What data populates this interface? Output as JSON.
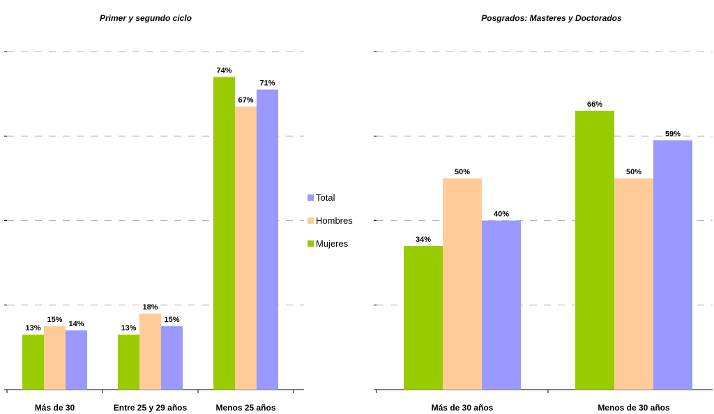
{
  "chart_data": [
    {
      "type": "bar",
      "title": "Primer y segundo ciclo",
      "categories": [
        "Más de 30",
        "Entre 25 y 29 años",
        "Menos 25 años"
      ],
      "series": [
        {
          "name": "Mujeres",
          "values": [
            13,
            13,
            74
          ],
          "labels": [
            "13%",
            "13%",
            "74%"
          ]
        },
        {
          "name": "Hombres",
          "values": [
            15,
            18,
            67
          ],
          "labels": [
            "15%",
            "18%",
            "67%"
          ]
        },
        {
          "name": "Total",
          "values": [
            14,
            15,
            71
          ],
          "labels": [
            "14%",
            "15%",
            "71%"
          ]
        }
      ],
      "ylim": [
        0,
        80
      ],
      "grid": true
    },
    {
      "type": "bar",
      "title": "Posgrados: Masteres y Doctorados",
      "categories": [
        "Más de 30 años",
        "Menos de 30 años"
      ],
      "series": [
        {
          "name": "Mujeres",
          "values": [
            34,
            66
          ],
          "labels": [
            "34%",
            "66%"
          ]
        },
        {
          "name": "Hombres",
          "values": [
            50,
            50
          ],
          "labels": [
            "50%",
            "50%"
          ]
        },
        {
          "name": "Total",
          "values": [
            40,
            59
          ],
          "labels": [
            "40%",
            "59%"
          ]
        }
      ],
      "ylim": [
        0,
        80
      ],
      "grid": true
    }
  ],
  "legend": {
    "placement": "center",
    "items": [
      {
        "name": "Total",
        "color": "#9999ff"
      },
      {
        "name": "Hombres",
        "color": "#ffcc99"
      },
      {
        "name": "Mujeres",
        "color": "#99cc00"
      }
    ]
  },
  "colors": {
    "Mujeres": "#99cc00",
    "Hombres": "#ffcc99",
    "Total": "#9999ff"
  }
}
